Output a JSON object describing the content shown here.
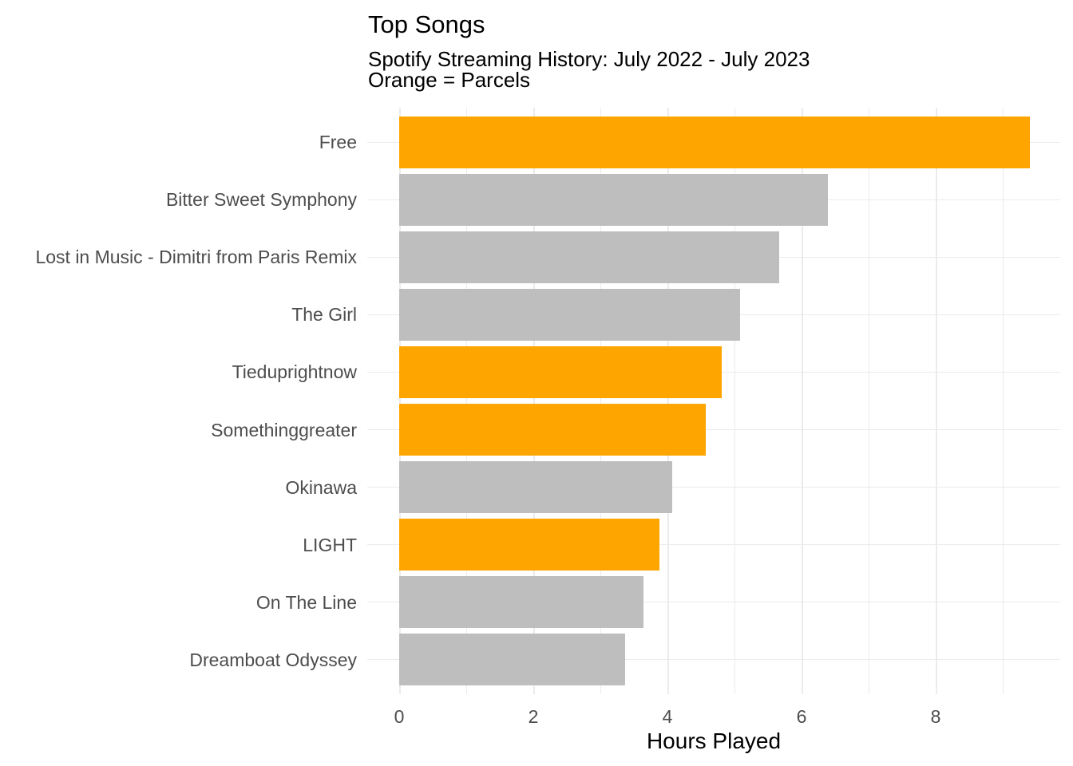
{
  "chart_data": {
    "type": "bar",
    "orientation": "horizontal",
    "title": "Top Songs",
    "subtitle_line1": "Spotify Streaming History: July 2022 - July 2023",
    "subtitle_line2": "Orange = Parcels",
    "xlabel": "Hours Played",
    "ylabel": "",
    "categories": [
      "Free",
      "Bitter Sweet Symphony",
      "Lost in Music - Dimitri from Paris Remix",
      "The Girl",
      "Tieduprightnow",
      "Somethinggreater",
      "Okinawa",
      "LIGHT",
      "On The Line",
      "Dreamboat Odyssey"
    ],
    "values": [
      9.4,
      6.39,
      5.67,
      5.08,
      4.81,
      4.57,
      4.07,
      3.88,
      3.64,
      3.37
    ],
    "is_parcels": [
      true,
      false,
      false,
      false,
      true,
      true,
      false,
      true,
      false,
      false
    ],
    "highlight_meaning": "Orange bars are songs by Parcels",
    "x_ticks": [
      0,
      2,
      4,
      6,
      8
    ],
    "xlim": [
      0,
      9.85
    ],
    "grid": true,
    "legend": "none",
    "colors": {
      "parcels_orange": "#FFA500",
      "other_gray": "#BEBEBE",
      "grid": "#EBEBEB",
      "axis_text": "#4D4D4D",
      "title_text": "#000000"
    }
  }
}
